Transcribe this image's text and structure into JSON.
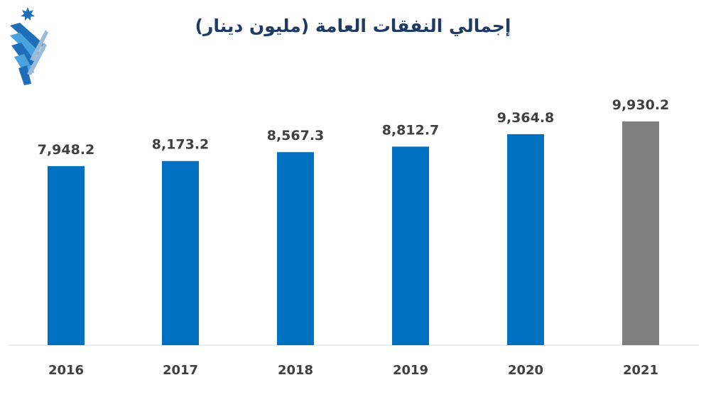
{
  "title": "إجمالي النفقات العامة (مليون دينار)",
  "colors": {
    "bar": "#0070C0",
    "highlight": "#7F7F7F",
    "title": "#1F3B63",
    "axis": "#D9D9D9"
  },
  "chart_data": {
    "type": "bar",
    "title": "إجمالي النفقات العامة (مليون دينار)",
    "xlabel": "",
    "ylabel": "",
    "categories": [
      "2016",
      "2017",
      "2018",
      "2019",
      "2020",
      "2021"
    ],
    "series": [
      {
        "values": [
          7948.2,
          8173.2,
          8567.3,
          8812.7,
          9364.8,
          9930.2
        ]
      }
    ],
    "data_labels": [
      "7,948.2",
      "8,173.2",
      "8,567.3",
      "8,812.7",
      "9,364.8",
      "9,930.2"
    ],
    "highlight_category": "2021",
    "ylim": [
      0,
      12000
    ],
    "grid": false,
    "legend": "none"
  }
}
